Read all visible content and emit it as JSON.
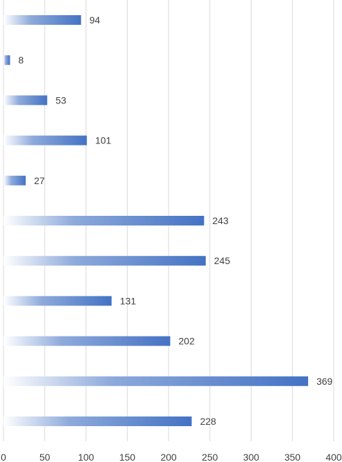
{
  "chart_data": {
    "type": "bar",
    "orientation": "horizontal",
    "title": "",
    "xlabel": "",
    "ylabel": "",
    "values": [
      94,
      8,
      53,
      101,
      27,
      243,
      245,
      131,
      202,
      369,
      228
    ],
    "xlim": [
      0,
      400
    ],
    "x_ticks": [
      0,
      50,
      100,
      150,
      200,
      250,
      300,
      350,
      400
    ],
    "x_tick_labels": [
      "0",
      "50",
      "100",
      "150",
      "200",
      "250",
      "300",
      "350",
      "400"
    ],
    "grid": "vertical",
    "legend": "none",
    "data_labels": true
  },
  "colors": {
    "bar_start": "#ffffff",
    "bar_end": "#4472c4",
    "grid": "#d9d9d9",
    "text": "#404040"
  }
}
